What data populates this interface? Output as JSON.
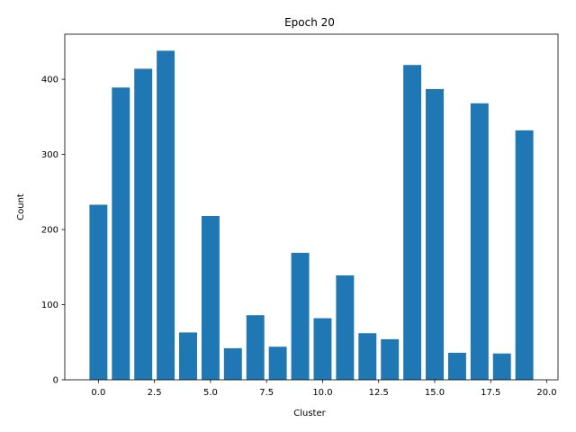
{
  "chart_data": {
    "type": "bar",
    "title": "Epoch 20",
    "xlabel": "Cluster",
    "ylabel": "Count",
    "x": [
      0,
      1,
      2,
      3,
      4,
      5,
      6,
      7,
      8,
      9,
      10,
      11,
      12,
      13,
      14,
      15,
      16,
      17,
      18,
      19
    ],
    "values": [
      233,
      389,
      414,
      438,
      63,
      218,
      42,
      86,
      44,
      169,
      82,
      139,
      62,
      54,
      419,
      387,
      36,
      368,
      35,
      332
    ],
    "xlim": [
      -1.5,
      20.5
    ],
    "ylim": [
      0,
      460
    ],
    "xticks": [
      0.0,
      2.5,
      5.0,
      7.5,
      10.0,
      12.5,
      15.0,
      17.5,
      20.0
    ],
    "xtick_labels": [
      "0.0",
      "2.5",
      "5.0",
      "7.5",
      "10.0",
      "12.5",
      "15.0",
      "17.5",
      "20.0"
    ],
    "yticks": [
      0,
      100,
      200,
      300,
      400
    ],
    "ytick_labels": [
      "0",
      "100",
      "200",
      "300",
      "400"
    ],
    "bar_color": "#1f77b4",
    "grid": false,
    "legend": "none"
  }
}
